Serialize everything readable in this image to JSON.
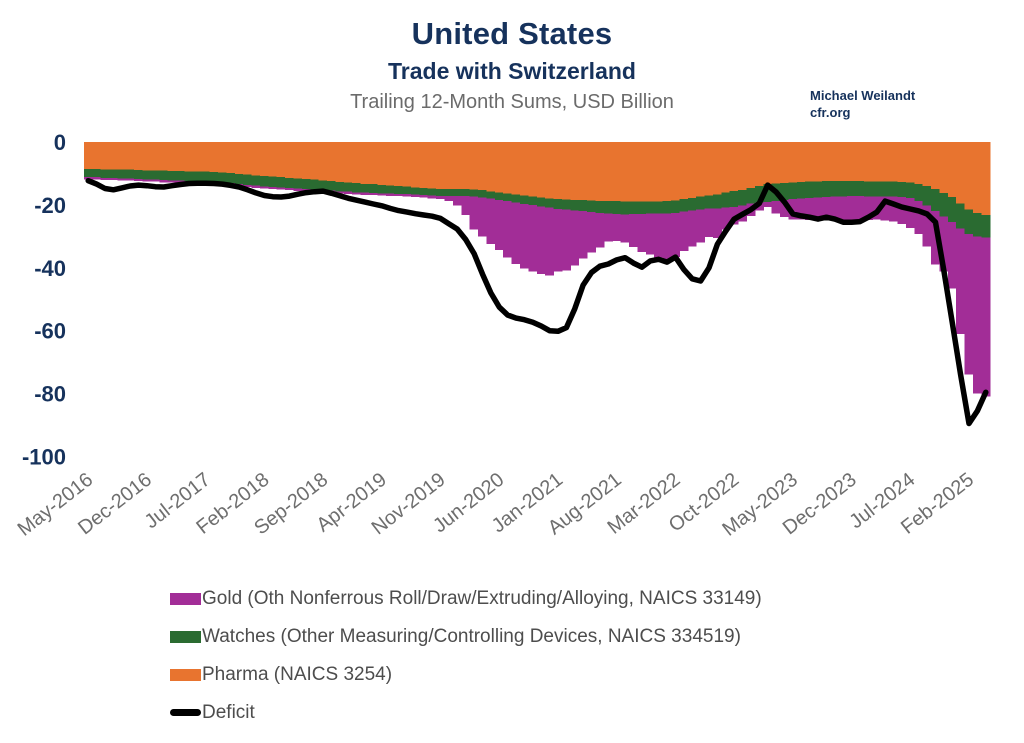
{
  "colors": {
    "gold": "#A22D97",
    "watches": "#2A6B31",
    "pharma": "#E8742F",
    "deficit": "#000000",
    "navy": "#16325C",
    "axis_gray": "#6E6E6E",
    "legend_text": "#4D4D4D"
  },
  "credit": {
    "line1": "Michael Weilandt",
    "line2": "cfr.org"
  },
  "legend": [
    {
      "label": "Gold (Oth Nonferrous Roll/Draw/Extruding/Alloying, NAICS 33149)",
      "color": "#A22D97",
      "shape": "box"
    },
    {
      "label": "Watches (Other Measuring/Controlling Devices, NAICS 334519)",
      "color": "#2A6B31",
      "shape": "box"
    },
    {
      "label": "Pharma (NAICS 3254)",
      "color": "#E8742F",
      "shape": "box"
    },
    {
      "label": "Deficit",
      "color": "#000000",
      "shape": "line"
    }
  ],
  "chart_data": {
    "type": "bar",
    "subtype": "stacked-monthly-bars-with-line",
    "title": "United States",
    "subtitle": "Trade with Switzerland",
    "units": "Trailing 12-Month Sums, USD Billion",
    "grid": false,
    "legend_position": "bottom-left",
    "ylim": [
      -100,
      0
    ],
    "y_ticks": [
      0,
      -20,
      -40,
      -60,
      -80,
      -100
    ],
    "x_monthly_start": "May-2016",
    "x_monthly_end": "Apr-2025",
    "n_months": 108,
    "x_tick_month_indices": [
      0,
      7,
      14,
      21,
      28,
      35,
      42,
      49,
      56,
      63,
      70,
      77,
      84,
      91,
      98,
      105
    ],
    "x_tick_labels": [
      "May-2016",
      "Dec-2016",
      "Jul-2017",
      "Feb-2018",
      "Sep-2018",
      "Apr-2019",
      "Nov-2019",
      "Jun-2020",
      "Jan-2021",
      "Aug-2021",
      "Mar-2022",
      "Oct-2022",
      "May-2023",
      "Dec-2023",
      "Jul-2024",
      "Feb-2025"
    ],
    "series": [
      {
        "name": "Pharma (NAICS 3254)",
        "color": "#E8742F",
        "values": [
          -8.6,
          -8.6,
          -8.7,
          -8.7,
          -8.8,
          -8.8,
          -8.9,
          -9.0,
          -9.0,
          -9.1,
          -9.2,
          -9.2,
          -9.3,
          -9.4,
          -9.4,
          -9.6,
          -9.7,
          -9.9,
          -10.1,
          -10.3,
          -10.6,
          -10.8,
          -11.0,
          -11.2,
          -11.4,
          -11.6,
          -11.8,
          -12.0,
          -12.2,
          -12.4,
          -12.7,
          -12.9,
          -13.1,
          -13.3,
          -13.4,
          -13.6,
          -13.8,
          -14.0,
          -14.2,
          -14.4,
          -14.6,
          -14.8,
          -15.0,
          -15.0,
          -15.0,
          -15.0,
          -15.1,
          -15.3,
          -15.7,
          -16.0,
          -16.3,
          -16.7,
          -17.0,
          -17.3,
          -17.6,
          -17.9,
          -18.2,
          -18.3,
          -18.4,
          -18.5,
          -18.6,
          -18.7,
          -18.8,
          -18.8,
          -18.9,
          -18.9,
          -18.9,
          -18.9,
          -18.9,
          -18.8,
          -18.6,
          -18.2,
          -17.8,
          -17.4,
          -17.0,
          -16.7,
          -16.1,
          -15.6,
          -15.2,
          -14.6,
          -14.0,
          -13.4,
          -13.2,
          -13.0,
          -12.9,
          -12.7,
          -12.6,
          -12.5,
          -12.4,
          -12.4,
          -12.4,
          -12.4,
          -12.4,
          -12.5,
          -12.5,
          -12.6,
          -12.6,
          -12.7,
          -12.8,
          -13.3,
          -14.0,
          -15.0,
          -16.2,
          -17.5,
          -19.5,
          -21.5,
          -22.5,
          -23.2
        ]
      },
      {
        "name": "Watches (Other Measuring/Controlling Devices, NAICS 334519)",
        "color": "#2A6B31",
        "values": [
          -2.6,
          -2.6,
          -2.7,
          -2.7,
          -2.8,
          -2.8,
          -2.8,
          -2.9,
          -2.9,
          -3.0,
          -3.0,
          -3.0,
          -3.1,
          -3.1,
          -3.1,
          -3.2,
          -3.2,
          -3.2,
          -3.3,
          -3.3,
          -3.3,
          -3.3,
          -3.3,
          -3.2,
          -3.2,
          -3.2,
          -3.1,
          -3.1,
          -3.1,
          -3.0,
          -3.0,
          -2.9,
          -2.9,
          -2.8,
          -2.8,
          -2.7,
          -2.6,
          -2.5,
          -2.4,
          -2.3,
          -2.3,
          -2.2,
          -2.2,
          -2.2,
          -2.2,
          -2.2,
          -2.2,
          -2.3,
          -2.3,
          -2.4,
          -2.5,
          -2.6,
          -2.7,
          -2.8,
          -2.9,
          -3.0,
          -3.1,
          -3.2,
          -3.3,
          -3.5,
          -3.6,
          -3.8,
          -3.9,
          -4.1,
          -4.1,
          -4.0,
          -4.0,
          -3.9,
          -3.9,
          -3.9,
          -3.9,
          -3.9,
          -3.9,
          -4.0,
          -4.2,
          -4.4,
          -4.7,
          -5.1,
          -5.0,
          -5.0,
          -5.3,
          -5.7,
          -5.5,
          -5.4,
          -5.3,
          -5.2,
          -5.2,
          -5.1,
          -5.1,
          -5.0,
          -5.0,
          -4.8,
          -4.8,
          -4.8,
          -4.8,
          -4.8,
          -4.8,
          -4.8,
          -5.0,
          -5.5,
          -6.2,
          -7.0,
          -7.5,
          -8.0,
          -8.0,
          -7.8,
          -7.5,
          -7.1
        ]
      },
      {
        "name": "Gold (Oth Nonferrous Roll/Draw/Extruding/Alloying, NAICS 33149)",
        "color": "#A22D97",
        "values": [
          -0.7,
          -0.7,
          -0.7,
          -0.7,
          -0.7,
          -0.7,
          -0.7,
          -0.7,
          -0.7,
          -0.7,
          -0.7,
          -0.7,
          -0.7,
          -0.7,
          -0.7,
          -0.7,
          -0.7,
          -0.7,
          -0.7,
          -0.7,
          -0.7,
          -0.7,
          -0.7,
          -0.7,
          -0.7,
          -0.7,
          -0.7,
          -0.7,
          -0.7,
          -0.7,
          -0.7,
          -0.7,
          -0.7,
          -0.7,
          -0.7,
          -0.7,
          -0.7,
          -0.7,
          -0.7,
          -0.8,
          -0.8,
          -0.9,
          -1.0,
          -1.5,
          -3.0,
          -6.0,
          -10.5,
          -12.5,
          -14.5,
          -16.0,
          -18.0,
          -19.5,
          -20.5,
          -21.0,
          -21.5,
          -21.5,
          -19.8,
          -19.3,
          -17.5,
          -15.0,
          -13.0,
          -11.0,
          -9.0,
          -8.5,
          -9.0,
          -10.5,
          -12.0,
          -13.0,
          -14.0,
          -14.5,
          -14.0,
          -12.5,
          -11.5,
          -10.5,
          -9.0,
          -9.5,
          -7.0,
          -5.5,
          -5.0,
          -4.0,
          -2.5,
          -1.5,
          -4.0,
          -5.5,
          -6.5,
          -6.8,
          -7.0,
          -7.2,
          -7.3,
          -7.5,
          -8.0,
          -8.0,
          -7.8,
          -7.5,
          -7.3,
          -7.5,
          -7.8,
          -8.5,
          -9.5,
          -10.5,
          -13.0,
          -17.0,
          -17.5,
          -21.0,
          -33.5,
          -44.7,
          -50.0,
          -50.7
        ]
      }
    ],
    "line": {
      "name": "Deficit",
      "color": "#000000",
      "values": [
        -12.3,
        -13.4,
        -14.8,
        -15.2,
        -14.6,
        -14.0,
        -13.7,
        -13.9,
        -14.2,
        -14.3,
        -13.9,
        -13.5,
        -13.2,
        -13.1,
        -13.1,
        -13.2,
        -13.4,
        -13.8,
        -14.3,
        -15.2,
        -16.2,
        -17.0,
        -17.4,
        -17.5,
        -17.2,
        -16.6,
        -16.1,
        -15.8,
        -15.6,
        -16.3,
        -17.1,
        -17.9,
        -18.5,
        -19.1,
        -19.7,
        -20.3,
        -21.1,
        -21.8,
        -22.3,
        -22.8,
        -23.2,
        -23.6,
        -24.3,
        -26.0,
        -27.7,
        -31.0,
        -35.5,
        -42.0,
        -48.0,
        -52.5,
        -55.0,
        -56.0,
        -56.5,
        -57.3,
        -58.5,
        -60.0,
        -60.2,
        -59.0,
        -53.0,
        -45.5,
        -41.5,
        -39.5,
        -38.8,
        -37.5,
        -36.8,
        -38.5,
        -39.8,
        -37.8,
        -37.3,
        -38.2,
        -36.6,
        -40.5,
        -43.5,
        -44.2,
        -40.0,
        -32.5,
        -28.3,
        -24.5,
        -23.0,
        -21.5,
        -19.5,
        -13.7,
        -15.9,
        -19.1,
        -22.9,
        -23.5,
        -23.9,
        -24.5,
        -23.9,
        -24.5,
        -25.5,
        -25.5,
        -25.3,
        -23.9,
        -22.3,
        -18.8,
        -19.7,
        -20.7,
        -21.3,
        -21.9,
        -22.9,
        -25.5,
        -41.0,
        -57.5,
        -74.0,
        -89.5,
        -85.5,
        -79.6
      ]
    }
  }
}
